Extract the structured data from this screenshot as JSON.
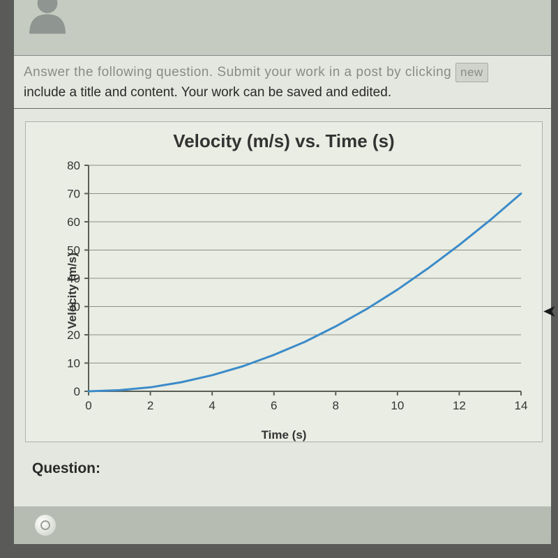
{
  "header": {
    "avatar_fill": "#8f9590"
  },
  "instructions": {
    "line1_pre": "Answer the following question.  Submit your work in a post by clicking ",
    "line1_btn": "new",
    "line2": "include a title and content.  Your work can be saved and edited."
  },
  "chart": {
    "type": "line",
    "title": "Velocity (m/s) vs. Time (s)",
    "xlabel": "Time (s)",
    "ylabel": "Velocity (m/s)",
    "xlim": [
      0,
      14
    ],
    "ylim": [
      0,
      80
    ],
    "xticks": [
      0,
      2,
      4,
      6,
      8,
      10,
      12,
      14
    ],
    "yticks": [
      0,
      10,
      20,
      30,
      40,
      50,
      60,
      70,
      80
    ],
    "grid_color": "#8a8f85",
    "axis_color": "#5a5f55",
    "line_color": "#3b8bc9",
    "line_width": 3,
    "background": "#eaede3",
    "tick_font_size": 17,
    "tick_color": "#333333",
    "series": {
      "x": [
        0,
        1,
        2,
        3,
        4,
        5,
        6,
        7,
        8,
        9,
        10,
        11,
        12,
        13,
        14
      ],
      "y": [
        0,
        0.4,
        1.4,
        3.2,
        5.7,
        8.9,
        12.9,
        17.5,
        23.0,
        29.1,
        36.0,
        43.6,
        51.8,
        60.6,
        70.0
      ]
    }
  },
  "question_label": "Question:",
  "colors": {
    "outer_bg": "#5a5a58",
    "page_bg": "#e4e7df",
    "header_bg": "#c5cbc0",
    "bottom_bar_bg": "#b6bcb2"
  }
}
